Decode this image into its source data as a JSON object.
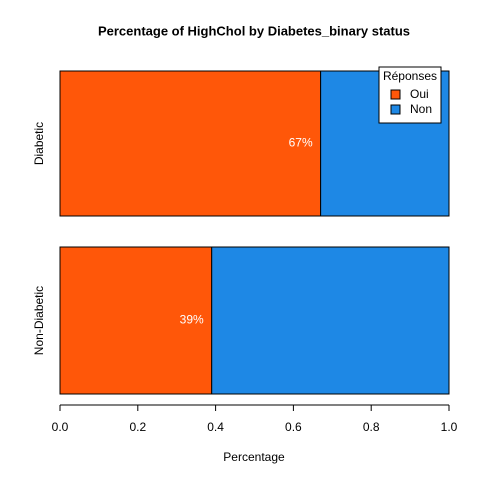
{
  "chart_data": {
    "type": "bar",
    "orientation": "horizontal",
    "stacked": true,
    "title": "Percentage of HighChol by Diabetes_binary status",
    "x_label": "Percentage",
    "categories": [
      "Diabetic",
      "Non-Diabetic"
    ],
    "series": [
      {
        "name": "Oui",
        "color": "#ff5709",
        "values": [
          0.67,
          0.39
        ],
        "value_labels": [
          "67%",
          "39%"
        ]
      },
      {
        "name": "Non",
        "color": "#1e88e5",
        "values": [
          0.33,
          0.61
        ]
      }
    ],
    "xlim": [
      0,
      1
    ],
    "xticks": [
      {
        "value": 0,
        "label": "0.0"
      },
      0.2,
      0.4,
      0.6,
      0.8,
      {
        "value": 1,
        "label": "1.0"
      }
    ],
    "legend": {
      "title": "Réponses",
      "position": "top-right"
    }
  }
}
